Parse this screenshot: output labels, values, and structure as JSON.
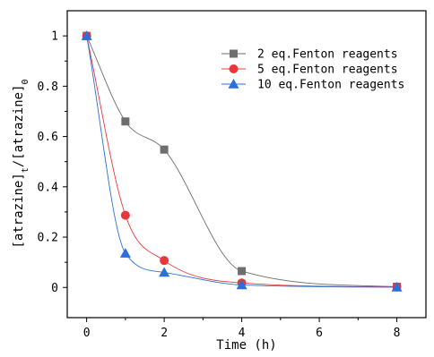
{
  "chart_data": {
    "type": "line",
    "xlabel": "Time (h)",
    "ylabel": {
      "main": "[atrazine]",
      "sub_t": "t",
      "mid": "/[atrazine]",
      "sub_0": "0"
    },
    "xlim": [
      -0.5,
      8.75
    ],
    "ylim": [
      -0.12,
      1.1
    ],
    "x_ticks": [
      0,
      2,
      4,
      6,
      8
    ],
    "y_ticks": [
      0,
      0.2,
      0.4,
      0.6,
      0.8,
      1.0
    ],
    "x_tick_labels": [
      "0",
      "2",
      "4",
      "6",
      "8"
    ],
    "y_tick_labels": [
      "0",
      "0.2",
      "0.4",
      "0.6",
      "0.8",
      "1"
    ],
    "grid": false,
    "legend_position": "top-right",
    "series": [
      {
        "name": "2 eq.Fenton reagents",
        "color": "#6e6e6e",
        "marker": "square",
        "x": [
          0,
          1,
          2,
          4,
          8
        ],
        "y": [
          1.0,
          0.66,
          0.548,
          0.065,
          0.003
        ]
      },
      {
        "name": "5 eq.Fenton reagents",
        "color": "#e8383d",
        "marker": "circle",
        "x": [
          0,
          1,
          2,
          4,
          8
        ],
        "y": [
          1.0,
          0.287,
          0.107,
          0.018,
          0.002
        ]
      },
      {
        "name": "10 eq.Fenton reagents",
        "color": "#2a6fdb",
        "marker": "triangle",
        "x": [
          0,
          1,
          2,
          4,
          8
        ],
        "y": [
          1.0,
          0.136,
          0.06,
          0.01,
          0.001
        ]
      }
    ]
  }
}
